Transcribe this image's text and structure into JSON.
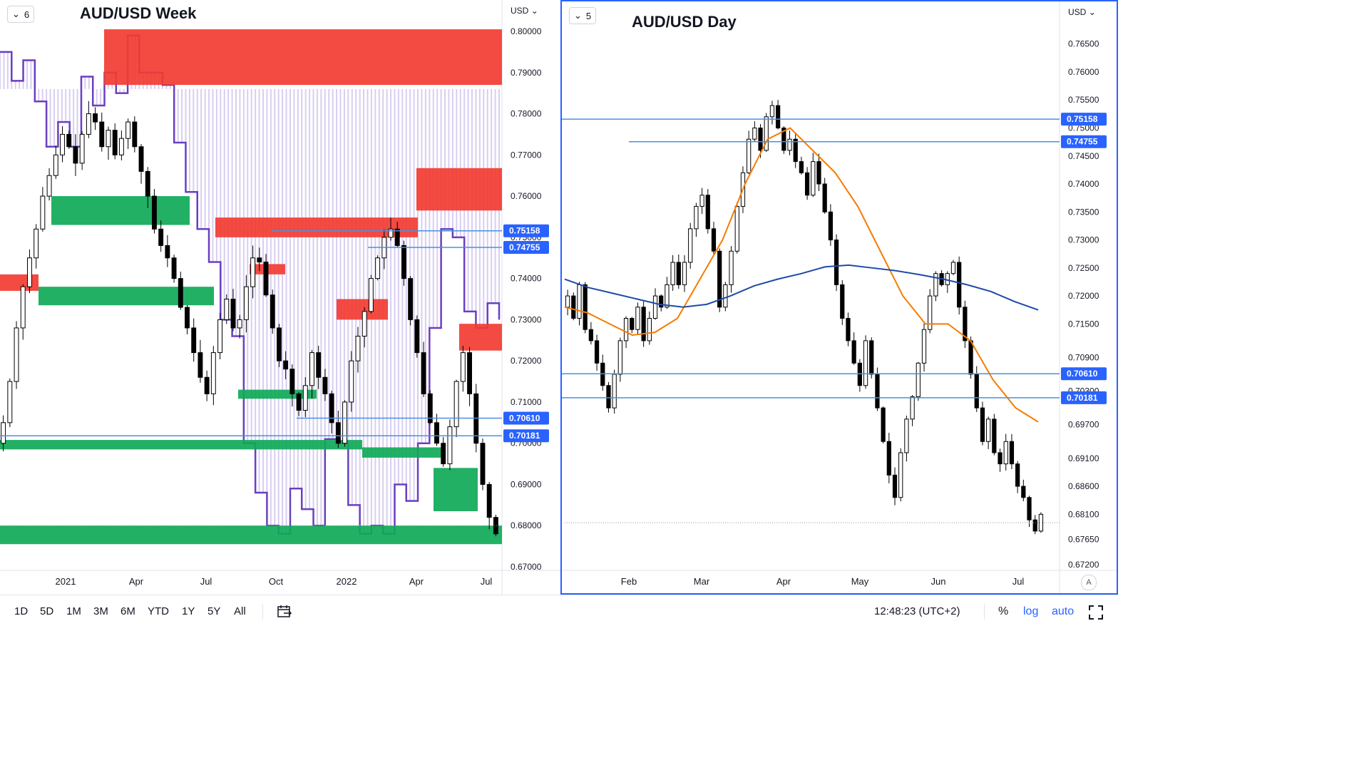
{
  "left": {
    "interval": "6",
    "title": "AUD/USD Week",
    "currency": "USD",
    "price_ticks": [
      "0.80000",
      "0.79000",
      "0.78000",
      "0.77000",
      "0.76000",
      "0.75000",
      "0.74000",
      "0.73000",
      "0.72000",
      "0.71000",
      "0.70000",
      "0.69000",
      "0.68000",
      "0.67000"
    ],
    "time_labels": [
      "2021",
      "Apr",
      "Jul",
      "Oct",
      "2022",
      "Apr",
      "Jul"
    ],
    "levels": [
      "0.75158",
      "0.74755",
      "0.70610",
      "0.70181"
    ]
  },
  "right": {
    "interval": "5",
    "title": "AUD/USD Day",
    "currency": "USD",
    "price_ticks": [
      "0.76500",
      "0.76000",
      "0.75500",
      "0.75000",
      "0.74500",
      "0.74000",
      "0.73500",
      "0.73000",
      "0.72500",
      "0.72000",
      "0.71500",
      "0.70900",
      "0.70300",
      "0.69700",
      "0.69100",
      "0.68600",
      "0.68100",
      "0.67650",
      "0.67200"
    ],
    "time_labels": [
      "Feb",
      "Mar",
      "Apr",
      "May",
      "Jun",
      "Jul"
    ],
    "levels": [
      "0.75158",
      "0.74755",
      "0.70610",
      "0.70181"
    ],
    "auto_badge": "A"
  },
  "bottom_bar": {
    "ranges": [
      "1D",
      "5D",
      "1M",
      "3M",
      "6M",
      "YTD",
      "1Y",
      "5Y",
      "All"
    ],
    "time": "12:48:23 (UTC+2)",
    "percent": "%",
    "log": "log",
    "auto": "auto"
  },
  "colors": {
    "supply_zone": "#f23c32",
    "demand_zone": "#0fa958",
    "level_line": "#4a90e2",
    "level_label_bg": "#2962ff",
    "overlay_line": "#6a3fc0",
    "overlay_fill": "#b9a7e6",
    "ema_fast": "#f57c00",
    "ema_slow": "#1e4aa8"
  },
  "chart_data": [
    {
      "type": "candlestick",
      "title": "AUD/USD Week",
      "ylim": [
        0.67,
        0.8
      ],
      "x_range": [
        "2020-11",
        "2022-07"
      ],
      "horizontal_levels": [
        0.75158,
        0.74755,
        0.7061,
        0.70181
      ],
      "supply_zones": [
        [
          0.787,
          0.8005
        ],
        [
          0.75,
          0.7548
        ],
        [
          0.7565,
          0.7668
        ],
        [
          0.7225,
          0.729
        ],
        [
          0.73,
          0.735
        ],
        [
          0.741,
          0.7435
        ],
        [
          0.737,
          0.741
        ]
      ],
      "demand_zones": [
        [
          0.753,
          0.76
        ],
        [
          0.7335,
          0.738
        ],
        [
          0.7108,
          0.713
        ],
        [
          0.6985,
          0.7008
        ],
        [
          0.6965,
          0.699
        ],
        [
          0.6835,
          0.694
        ],
        [
          0.6755,
          0.68
        ]
      ],
      "overlay_series": [
        {
          "values": [
            0.795,
            0.788,
            0.793,
            0.783,
            0.772,
            0.778,
            0.772,
            0.789,
            0.782,
            0.79,
            0.785,
            0.799,
            0.79,
            0.79,
            0.787,
            0.773,
            0.761,
            0.752,
            0.744,
            0.73,
            0.726,
            0.7,
            0.688,
            0.68,
            0.678,
            0.689,
            0.684,
            0.68,
            0.701,
            0.7,
            0.685,
            0.678,
            0.68,
            0.678,
            0.69,
            0.686,
            0.7,
            0.728,
            0.752,
            0.75,
            0.732,
            0.728,
            0.734,
            0.73
          ]
        }
      ]
    },
    {
      "type": "candlestick",
      "title": "AUD/USD Day",
      "ylim": [
        0.672,
        0.767
      ],
      "x_range": [
        "2022-01-10",
        "2022-07-20"
      ],
      "horizontal_levels": [
        0.75158,
        0.74755,
        0.7061,
        0.70181
      ],
      "series": [
        {
          "values": [
            0.718,
            0.717,
            0.715,
            0.713,
            0.7135,
            0.716,
            0.723,
            0.73,
            0.74,
            0.748,
            0.75,
            0.746,
            0.742,
            0.736,
            0.728,
            0.72,
            0.715,
            0.715,
            0.712,
            0.705,
            0.7,
            0.6975
          ]
        },
        {
          "values": [
            0.723,
            0.7215,
            0.7205,
            0.7195,
            0.7185,
            0.718,
            0.7185,
            0.72,
            0.7218,
            0.723,
            0.724,
            0.7252,
            0.7255,
            0.725,
            0.7245,
            0.7238,
            0.723,
            0.722,
            0.7208,
            0.719,
            0.7175
          ]
        }
      ]
    }
  ]
}
